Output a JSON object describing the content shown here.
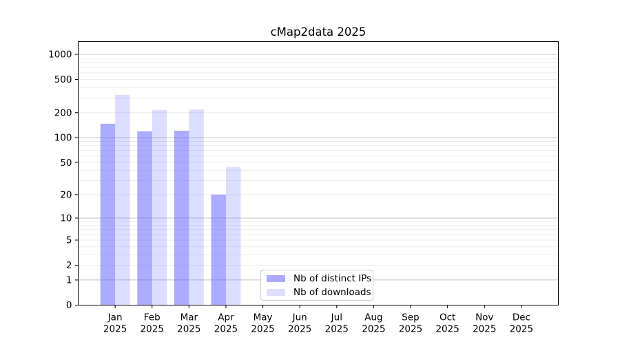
{
  "chart_data": {
    "type": "bar",
    "title": "cMap2data 2025",
    "categories": [
      "Jan",
      "Feb",
      "Mar",
      "Apr",
      "May",
      "Jun",
      "Jul",
      "Aug",
      "Sep",
      "Oct",
      "Nov",
      "Dec"
    ],
    "x_tick_second_line": "2025",
    "series": [
      {
        "name": "Nb of distinct IPs",
        "color": "rgba(102,102,255,0.55)",
        "values": [
          147,
          119,
          121,
          20,
          null,
          null,
          null,
          null,
          null,
          null,
          null,
          null
        ]
      },
      {
        "name": "Nb of downloads",
        "color": "rgba(102,102,255,0.22)",
        "values": [
          327,
          214,
          218,
          44,
          null,
          null,
          null,
          null,
          null,
          null,
          null,
          null
        ]
      }
    ],
    "xlabel": "",
    "ylabel": "",
    "y_axis": {
      "scale": "log1p",
      "tick_values": [
        0,
        1,
        2,
        5,
        10,
        20,
        50,
        100,
        200,
        500,
        1000
      ],
      "major_grid_values": [
        1,
        10,
        100,
        1000
      ],
      "range": [
        0,
        1434
      ]
    },
    "grid": "on",
    "legend_position": "lower center inside plot",
    "colors": {
      "major_grid": "#c3c3c3",
      "minor_grid": "#ececec",
      "axis": "#000000",
      "text": "#000000",
      "legend_border": "#cccccc",
      "legend_bg": "rgba(255,255,255,0.85)"
    }
  }
}
